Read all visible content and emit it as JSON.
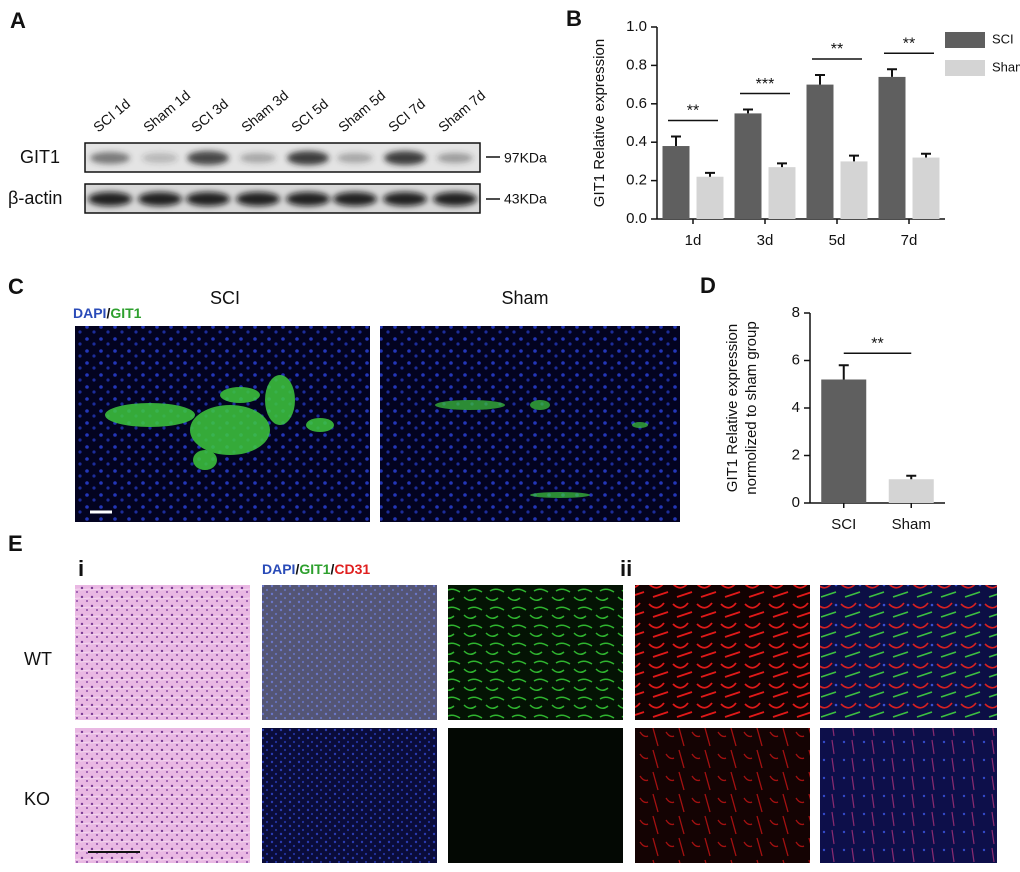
{
  "panel_letters": [
    "A",
    "B",
    "C",
    "D",
    "E"
  ],
  "panel_a": {
    "lanes": [
      "SCI 1d",
      "Sham 1d",
      "SCI 3d",
      "Sham 3d",
      "SCI 5d",
      "Sham 5d",
      "SCI 7d",
      "Sham 7d"
    ],
    "rows": [
      "GIT1",
      "β-actin"
    ],
    "sizes": [
      "97KDa",
      "43KDa"
    ]
  },
  "panel_c": {
    "stain_label": [
      "DAPI",
      "/",
      "GIT1"
    ],
    "columns": [
      "SCI",
      "Sham"
    ]
  },
  "panel_e": {
    "sub_labels": [
      "i",
      "ii"
    ],
    "stain_label": [
      "DAPI",
      "/",
      "GIT1",
      "/",
      "CD31"
    ],
    "rows": [
      "WT",
      "KO"
    ]
  },
  "chart_data": [
    {
      "type": "bar",
      "ylabel": "GIT1 Relative expression",
      "categories": [
        "1d",
        "3d",
        "5d",
        "7d"
      ],
      "series": [
        {
          "name": "SCI",
          "color": "#5f5f5f",
          "values": [
            0.38,
            0.55,
            0.7,
            0.74
          ],
          "errors": [
            0.05,
            0.02,
            0.05,
            0.04
          ]
        },
        {
          "name": "Sham",
          "color": "#d4d4d4",
          "values": [
            0.22,
            0.27,
            0.3,
            0.32
          ],
          "errors": [
            0.02,
            0.02,
            0.03,
            0.02
          ]
        }
      ],
      "annotations": [
        "**",
        "***",
        "**",
        "**"
      ],
      "ylim": [
        0,
        1.0
      ],
      "yticks": [
        {
          "value": 0,
          "label": "0.0"
        },
        0.2,
        0.4,
        0.6,
        0.8,
        {
          "value": 1.0,
          "label": "1.0"
        }
      ],
      "legend": "right"
    },
    {
      "type": "bar",
      "ylabel": [
        "GIT1 Relative expression",
        "normolized to sham group"
      ],
      "categories": [
        "SCI",
        "Sham"
      ],
      "values": [
        5.2,
        1.0
      ],
      "errors": [
        0.6,
        0.15
      ],
      "colors": [
        "#5f5f5f",
        "#d4d4d4"
      ],
      "annotations": [
        "**"
      ],
      "ylim": [
        0,
        8
      ],
      "yticks": [
        0,
        2,
        4,
        6,
        8
      ]
    }
  ]
}
